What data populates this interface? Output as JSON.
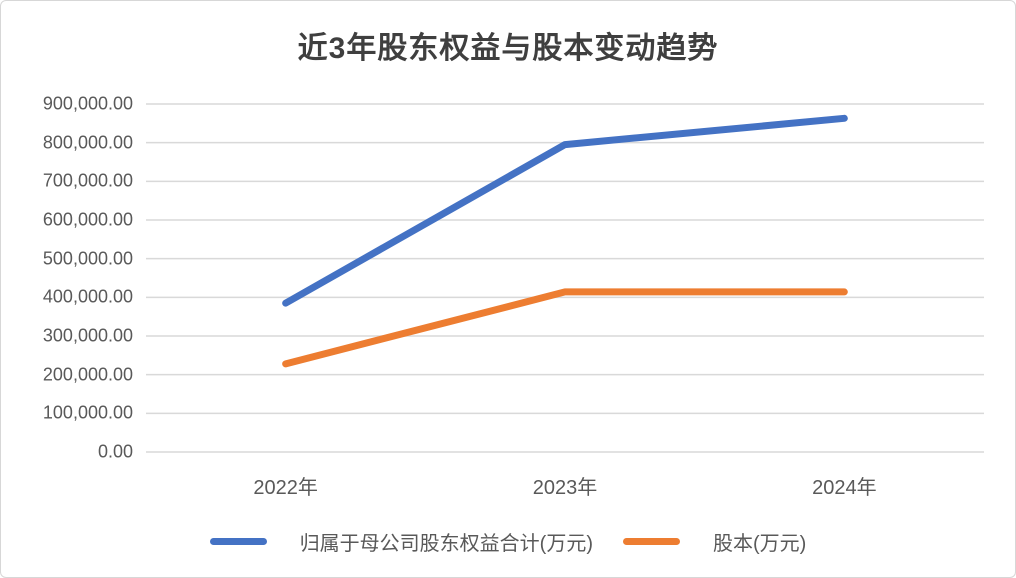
{
  "colors": {
    "series_equity": "#4472C4",
    "series_capital": "#ED7D31",
    "gridline": "#D9D9D9",
    "axis_text": "#595959",
    "title_text": "#3F3F3F",
    "frame_border": "#D7D7D7"
  },
  "chart_data": {
    "type": "line",
    "title": "近3年股东权益与股本变动趋势",
    "categories": [
      "2022年",
      "2023年",
      "2024年"
    ],
    "series": [
      {
        "name": "归属于母公司股东权益合计(万元)",
        "slug": "equity-total",
        "color": "#4472C4",
        "values": [
          385000,
          795000,
          863000
        ]
      },
      {
        "name": "股本(万元)",
        "slug": "share-capital",
        "color": "#ED7D31",
        "values": [
          228000,
          414000,
          414000
        ]
      }
    ],
    "ylim": [
      0,
      900000
    ],
    "ytick_step": 100000,
    "ytick_labels_top_to_bottom": [
      "900,000.00",
      "800,000.00",
      "700,000.00",
      "600,000.00",
      "500,000.00",
      "400,000.00",
      "300,000.00",
      "200,000.00",
      "100,000.00",
      "0.00"
    ],
    "xlabel": "",
    "ylabel": "",
    "grid": true,
    "legend_position": "bottom"
  }
}
